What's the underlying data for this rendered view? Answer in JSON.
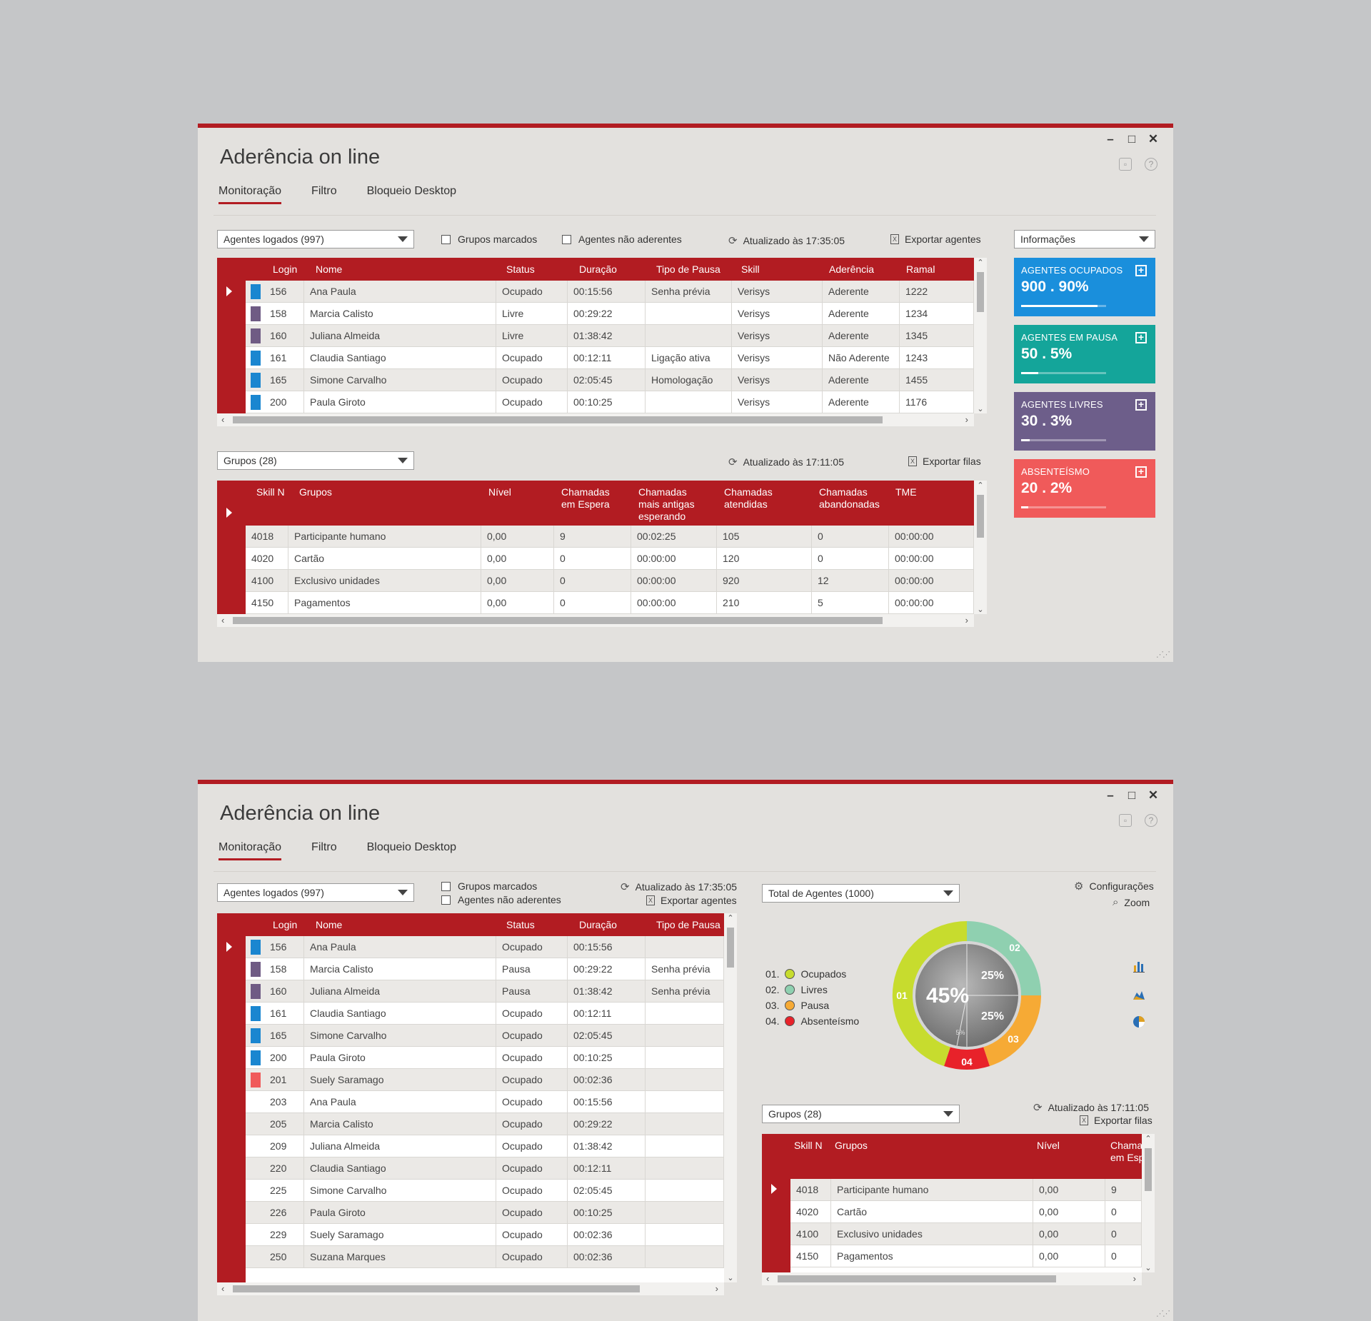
{
  "app": {
    "title": "Aderência on line",
    "tabs": [
      "Monitoração",
      "Filtro",
      "Bloqueio Desktop"
    ],
    "controls": {
      "minimize": "–",
      "maximize": "□",
      "close": "✕"
    }
  },
  "w1": {
    "agents_select": "Agentes logados (997)",
    "chk_grupos": "Grupos marcados",
    "chk_nao_aderentes": "Agentes não aderentes",
    "updated": "Atualizado às 17:35:05",
    "export": "Exportar agentes",
    "info_select": "Informações",
    "agents_table": {
      "headers": [
        "Login",
        "Nome",
        "Status",
        "Duração",
        "Tipo de Pausa",
        "Skill",
        "Aderência",
        "Ramal"
      ],
      "rows": [
        {
          "color": "#1a86d0",
          "login": "156",
          "nome": "Ana Paula",
          "status": "Ocupado",
          "duracao": "00:15:56",
          "pausa": "Senha prévia",
          "skill": "Verisys",
          "aderencia": "Aderente",
          "ramal": "1222"
        },
        {
          "color": "#6f5b84",
          "login": "158",
          "nome": "Marcia Calisto",
          "status": "Livre",
          "duracao": "00:29:22",
          "pausa": "",
          "skill": "Verisys",
          "aderencia": "Aderente",
          "ramal": "1234"
        },
        {
          "color": "#6f5b84",
          "login": "160",
          "nome": "Juliana Almeida",
          "status": "Livre",
          "duracao": "01:38:42",
          "pausa": "",
          "skill": "Verisys",
          "aderencia": "Aderente",
          "ramal": "1345"
        },
        {
          "color": "#1a86d0",
          "login": "161",
          "nome": "Claudia Santiago",
          "status": "Ocupado",
          "duracao": "00:12:11",
          "pausa": "Ligação ativa",
          "skill": "Verisys",
          "aderencia": "Não Aderente",
          "ramal": "1243"
        },
        {
          "color": "#1a86d0",
          "login": "165",
          "nome": "Simone Carvalho",
          "status": "Ocupado",
          "duracao": "02:05:45",
          "pausa": "Homologação",
          "skill": "Verisys",
          "aderencia": "Aderente",
          "ramal": "1455"
        },
        {
          "color": "#1a86d0",
          "login": "200",
          "nome": "Paula Giroto",
          "status": "Ocupado",
          "duracao": "00:10:25",
          "pausa": "",
          "skill": "Verisys",
          "aderencia": "Aderente",
          "ramal": "1176"
        }
      ]
    },
    "groups_select": "Grupos (28)",
    "groups_updated": "Atualizado às 17:11:05",
    "groups_export": "Exportar filas",
    "groups_table": {
      "headers": [
        "Skill N",
        "Grupos",
        "Nível",
        "Chamadas\nem Espera",
        "Chamadas\nmais antigas\nesperando",
        "Chamadas\natendidas",
        "Chamadas\nabandonadas",
        "TME"
      ],
      "rows": [
        {
          "skill": "4018",
          "grupo": "Participante humano",
          "nivel": "0,00",
          "espera": "9",
          "antigas": "00:02:25",
          "atendidas": "105",
          "abandonadas": "0",
          "tme": "00:00:00"
        },
        {
          "skill": "4020",
          "grupo": "Cartão",
          "nivel": "0,00",
          "espera": "0",
          "antigas": "00:00:00",
          "atendidas": "120",
          "abandonadas": "0",
          "tme": "00:00:00"
        },
        {
          "skill": "4100",
          "grupo": "Exclusivo unidades",
          "nivel": "0,00",
          "espera": "0",
          "antigas": "00:00:00",
          "atendidas": "920",
          "abandonadas": "12",
          "tme": "00:00:00"
        },
        {
          "skill": "4150",
          "grupo": "Pagamentos",
          "nivel": "0,00",
          "espera": "0",
          "antigas": "00:00:00",
          "atendidas": "210",
          "abandonadas": "5",
          "tme": "00:00:00"
        }
      ]
    },
    "cards": [
      {
        "label": "AGENTES OCUPADOS",
        "value": "900 . 90%",
        "color": "#1a8fdc",
        "level": 0.9
      },
      {
        "label": "AGENTES EM PAUSA",
        "value": "50 . 5%",
        "color": "#14a59a",
        "level": 0.2
      },
      {
        "label": "AGENTES LIVRES",
        "value": "30 . 3%",
        "color": "#6d5e8a",
        "level": 0.1
      },
      {
        "label": "ABSENTEÍSMO",
        "value": "20 . 2%",
        "color": "#f05a5a",
        "level": 0.08
      }
    ]
  },
  "w2": {
    "agents_select": "Agentes logados (997)",
    "chk_grupos": "Grupos marcados",
    "chk_nao_aderentes": "Agentes não aderentes",
    "updated": "Atualizado às 17:35:05",
    "export": "Exportar agentes",
    "total_select": "Total de Agentes (1000)",
    "config": "Configurações",
    "zoom": "Zoom",
    "agents_table": {
      "headers": [
        "Login",
        "Nome",
        "Status",
        "Duração",
        "Tipo de Pausa"
      ],
      "rows": [
        {
          "color": "#1a86d0",
          "login": "156",
          "nome": "Ana Paula",
          "status": "Ocupado",
          "duracao": "00:15:56",
          "pausa": ""
        },
        {
          "color": "#6f5b84",
          "login": "158",
          "nome": "Marcia Calisto",
          "status": "Pausa",
          "duracao": "00:29:22",
          "pausa": "Senha prévia"
        },
        {
          "color": "#6f5b84",
          "login": "160",
          "nome": "Juliana Almeida",
          "status": "Pausa",
          "duracao": "01:38:42",
          "pausa": "Senha prévia"
        },
        {
          "color": "#1a86d0",
          "login": "161",
          "nome": "Claudia Santiago",
          "status": "Ocupado",
          "duracao": "00:12:11",
          "pausa": ""
        },
        {
          "color": "#1a86d0",
          "login": "165",
          "nome": "Simone Carvalho",
          "status": "Ocupado",
          "duracao": "02:05:45",
          "pausa": ""
        },
        {
          "color": "#1a86d0",
          "login": "200",
          "nome": "Paula Giroto",
          "status": "Ocupado",
          "duracao": "00:10:25",
          "pausa": ""
        },
        {
          "color": "#f05a5a",
          "login": "201",
          "nome": "Suely Saramago",
          "status": "Ocupado",
          "duracao": "00:02:36",
          "pausa": ""
        },
        {
          "color": "",
          "login": "203",
          "nome": "Ana Paula",
          "status": "Ocupado",
          "duracao": "00:15:56",
          "pausa": ""
        },
        {
          "color": "",
          "login": "205",
          "nome": "Marcia Calisto",
          "status": "Ocupado",
          "duracao": "00:29:22",
          "pausa": ""
        },
        {
          "color": "",
          "login": "209",
          "nome": "Juliana Almeida",
          "status": "Ocupado",
          "duracao": "01:38:42",
          "pausa": ""
        },
        {
          "color": "",
          "login": "220",
          "nome": "Claudia Santiago",
          "status": "Ocupado",
          "duracao": "00:12:11",
          "pausa": ""
        },
        {
          "color": "",
          "login": "225",
          "nome": "Simone Carvalho",
          "status": "Ocupado",
          "duracao": "02:05:45",
          "pausa": ""
        },
        {
          "color": "",
          "login": "226",
          "nome": "Paula Giroto",
          "status": "Ocupado",
          "duracao": "00:10:25",
          "pausa": ""
        },
        {
          "color": "",
          "login": "229",
          "nome": "Suely Saramago",
          "status": "Ocupado",
          "duracao": "00:02:36",
          "pausa": ""
        },
        {
          "color": "",
          "login": "250",
          "nome": "Suzana Marques",
          "status": "Ocupado",
          "duracao": "00:02:36",
          "pausa": ""
        }
      ]
    },
    "legend": [
      {
        "label": "01.  Ocupados",
        "color": "#c7dc2e"
      },
      {
        "label": "02.  Livres",
        "color": "#8fd0b0"
      },
      {
        "label": "03.  Pausa",
        "color": "#f6aa35"
      },
      {
        "label": "04.  Absenteísmo",
        "color": "#e8222a"
      }
    ],
    "donut": {
      "center": "45%",
      "inner_top": "25%",
      "inner_bottom": "25%",
      "inner_small": "5%",
      "label_01": "01",
      "label_02": "02",
      "label_03": "03",
      "label_04": "04"
    },
    "groups_select": "Grupos (28)",
    "groups_updated": "Atualizado às 17:11:05",
    "groups_export": "Exportar filas",
    "groups_table": {
      "headers": [
        "Skill N",
        "Grupos",
        "Nível",
        "Chamad\nem Espe"
      ],
      "rows": [
        {
          "skill": "4018",
          "grupo": "Participante humano",
          "nivel": "0,00",
          "espera": "9"
        },
        {
          "skill": "4020",
          "grupo": "Cartão",
          "nivel": "0,00",
          "espera": "0"
        },
        {
          "skill": "4100",
          "grupo": "Exclusivo unidades",
          "nivel": "0,00",
          "espera": "0"
        },
        {
          "skill": "4150",
          "grupo": "Pagamentos",
          "nivel": "0,00",
          "espera": "0"
        }
      ]
    }
  }
}
